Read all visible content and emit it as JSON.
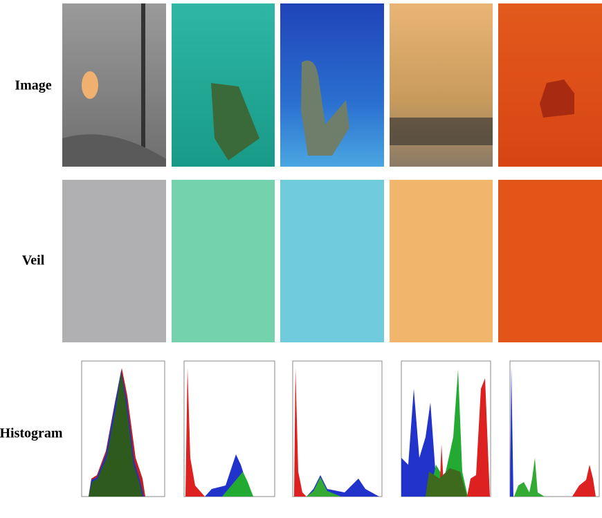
{
  "row_labels": [
    "Image",
    "Veil",
    "Histogram"
  ]
}
